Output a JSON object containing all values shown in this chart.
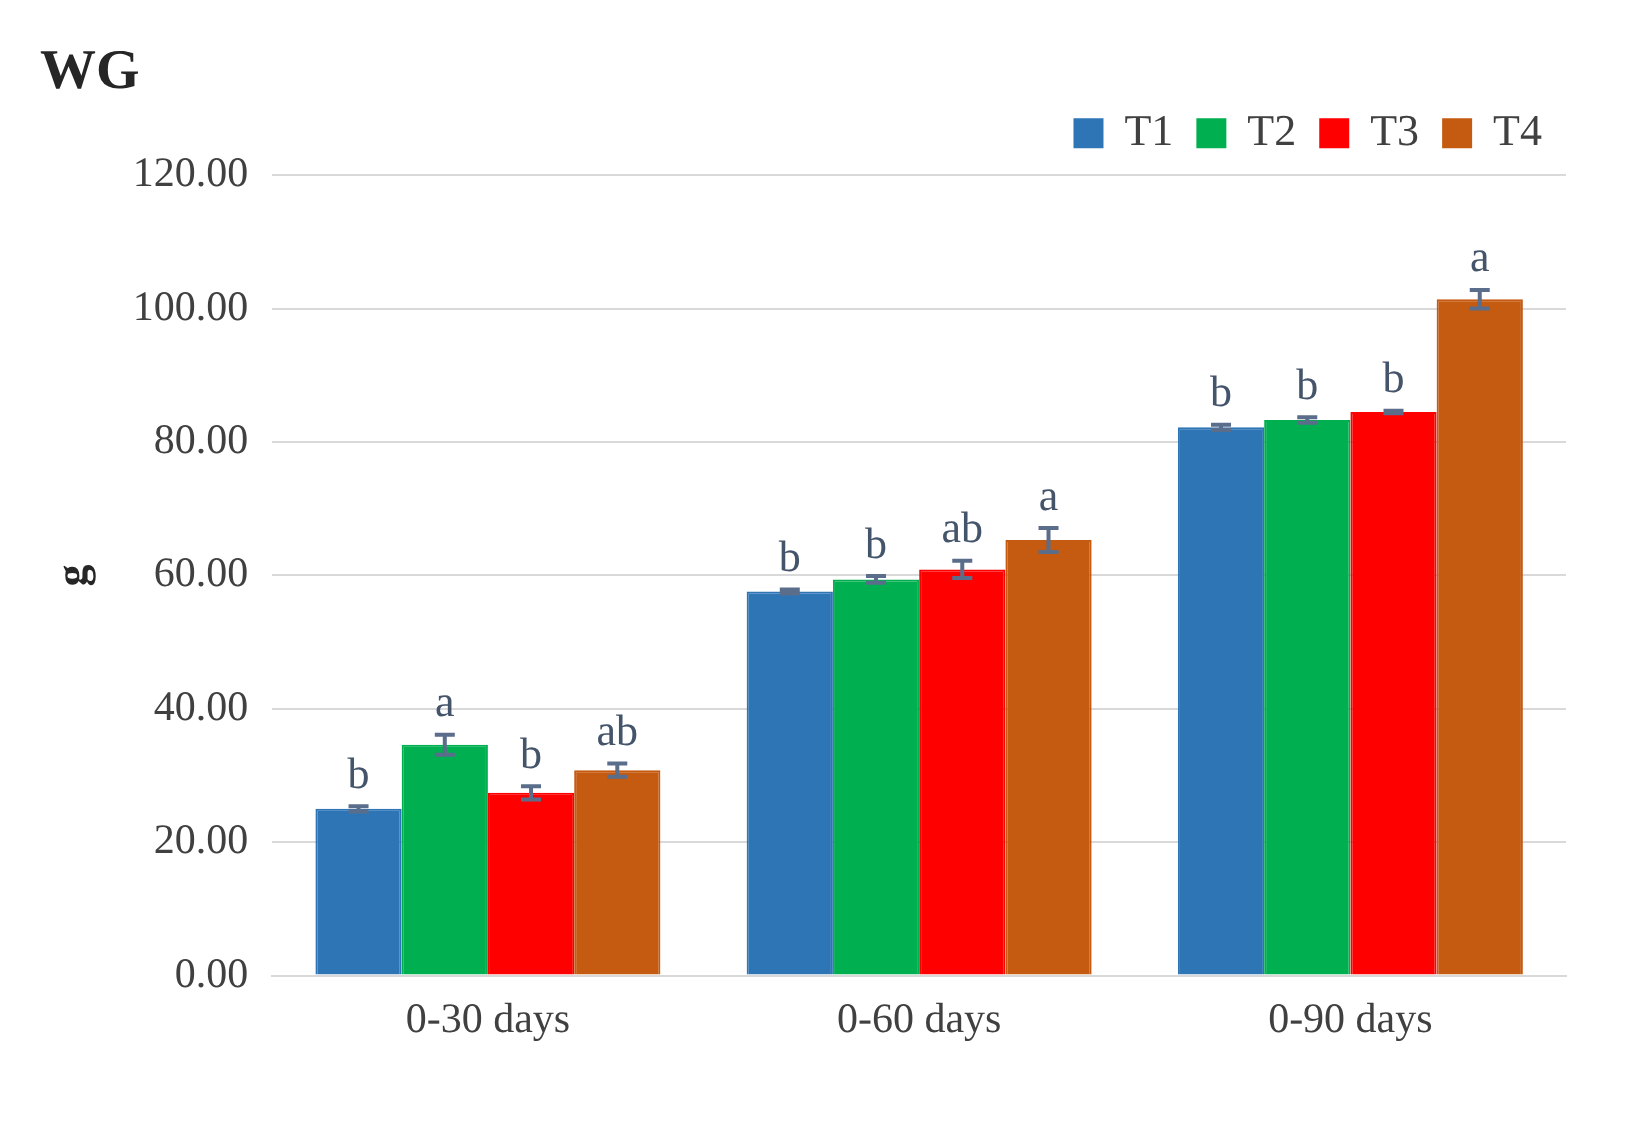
{
  "chart_data": {
    "type": "bar",
    "title": "WG",
    "ylabel": "g",
    "categories": [
      "0-30 days",
      "0-60 days",
      "0-90 days"
    ],
    "series": [
      {
        "name": "T1",
        "color": "#2e75b6",
        "values": [
          25.0,
          57.6,
          82.2
        ],
        "errors": [
          0.4,
          0.3,
          0.4
        ],
        "value_labels": [
          "b",
          "b",
          "b"
        ]
      },
      {
        "name": "T2",
        "color": "#00b050",
        "values": [
          34.6,
          59.4,
          83.3
        ],
        "errors": [
          1.5,
          0.5,
          0.4
        ],
        "value_labels": [
          "a",
          "b",
          "b"
        ]
      },
      {
        "name": "T3",
        "color": "#ff0000",
        "values": [
          27.4,
          60.9,
          84.5
        ],
        "errors": [
          1.0,
          1.3,
          0.2
        ],
        "value_labels": [
          "b",
          "ab",
          "b"
        ]
      },
      {
        "name": "T4",
        "color": "#c55a11",
        "values": [
          30.8,
          65.3,
          101.4
        ],
        "errors": [
          1.0,
          1.8,
          1.4
        ],
        "value_labels": [
          "ab",
          "a",
          "a"
        ]
      }
    ],
    "ylim": [
      0,
      120
    ],
    "yticks": [
      {
        "value": 0,
        "label": "0.00"
      },
      {
        "value": 20,
        "label": "20.00"
      },
      {
        "value": 40,
        "label": "40.00"
      },
      {
        "value": 60,
        "label": "60.00"
      },
      {
        "value": 80,
        "label": "80.00"
      },
      {
        "value": 100,
        "label": "100.00"
      },
      {
        "value": 120,
        "label": "120.00"
      }
    ],
    "grid": "y",
    "legend": "top right"
  }
}
